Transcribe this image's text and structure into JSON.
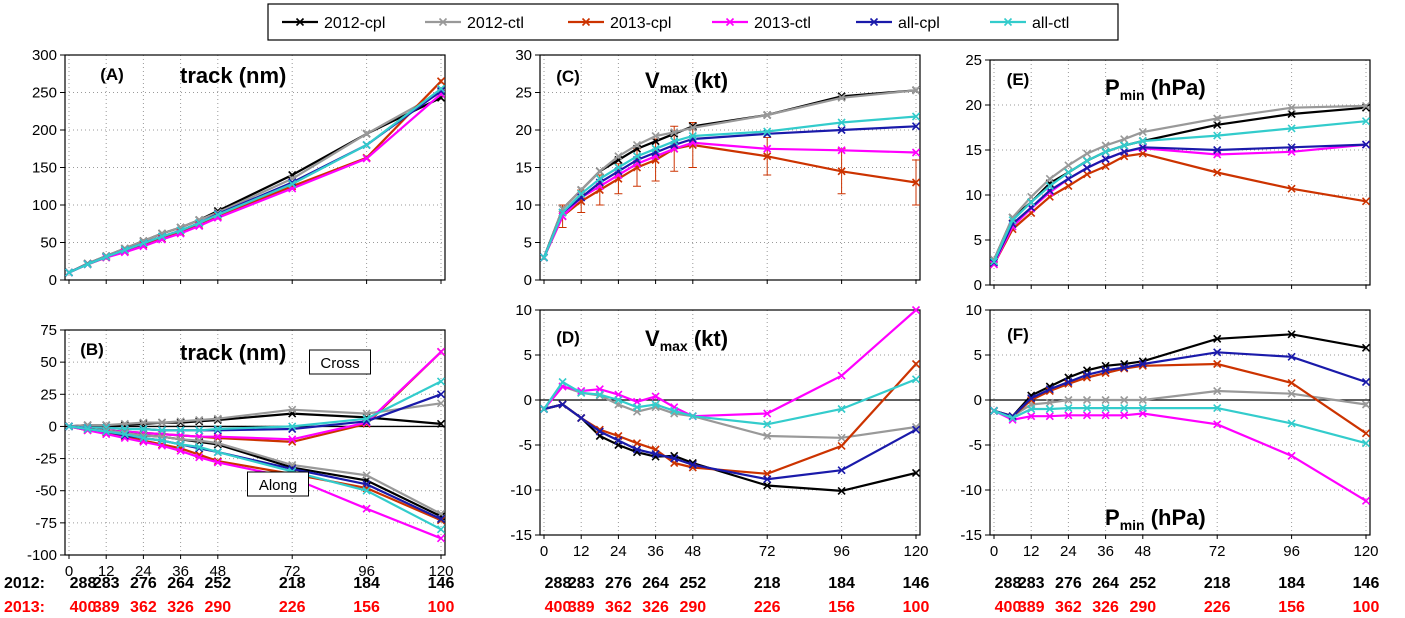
{
  "legend": [
    {
      "name": "2012-cpl",
      "color": "#000000"
    },
    {
      "name": "2012-ctl",
      "color": "#999999"
    },
    {
      "name": "2013-cpl",
      "color": "#cc3300"
    },
    {
      "name": "2013-ctl",
      "color": "#ff00ff"
    },
    {
      "name": "all-cpl",
      "color": "#1a1aaa"
    },
    {
      "name": "all-ctl",
      "color": "#33cccc"
    }
  ],
  "counts": {
    "label_2012": "2012:",
    "label_2013": "2013:",
    "color_2012": "#000000",
    "color_2013": "#ff0000",
    "hours": [
      0,
      12,
      24,
      36,
      48,
      72,
      96,
      120
    ],
    "values_2012": [
      "288",
      "283",
      "276",
      "264",
      "252",
      "218",
      "184",
      "146"
    ],
    "values_2013": [
      "400",
      "389",
      "362",
      "326",
      "290",
      "226",
      "156",
      "100"
    ]
  },
  "chart_data": [
    {
      "panel": "(A)",
      "type": "line",
      "title": "track (nm)",
      "x": [
        0,
        6,
        12,
        18,
        24,
        30,
        36,
        42,
        48,
        72,
        96,
        120
      ],
      "xticks": [
        0,
        12,
        24,
        36,
        48,
        72,
        96,
        120
      ],
      "ylim": [
        0,
        300
      ],
      "yticks": [
        0,
        50,
        100,
        150,
        200,
        250,
        300
      ],
      "grid": true,
      "series": [
        {
          "name": "2012-cpl",
          "values": [
            10,
            22,
            32,
            42,
            52,
            62,
            70,
            80,
            92,
            140,
            195,
            243
          ]
        },
        {
          "name": "2012-ctl",
          "values": [
            10,
            22,
            32,
            42,
            52,
            62,
            70,
            80,
            90,
            135,
            195,
            250
          ]
        },
        {
          "name": "2013-cpl",
          "values": [
            10,
            21,
            30,
            38,
            47,
            55,
            63,
            73,
            85,
            125,
            163,
            265
          ]
        },
        {
          "name": "2013-ctl",
          "values": [
            10,
            21,
            30,
            37,
            45,
            54,
            62,
            72,
            83,
            122,
            162,
            248
          ]
        },
        {
          "name": "all-cpl",
          "values": [
            10,
            21,
            31,
            40,
            49,
            58,
            66,
            76,
            88,
            130,
            180,
            252
          ]
        },
        {
          "name": "all-ctl",
          "values": [
            10,
            21,
            31,
            40,
            49,
            58,
            66,
            76,
            87,
            128,
            180,
            255
          ]
        }
      ]
    },
    {
      "panel": "(B)",
      "type": "line",
      "title": "track (nm)",
      "x": [
        0,
        6,
        12,
        18,
        24,
        30,
        36,
        42,
        48,
        72,
        96,
        120
      ],
      "xticks": [
        0,
        12,
        24,
        36,
        48,
        72,
        96,
        120
      ],
      "ylim": [
        -100,
        75
      ],
      "yticks": [
        -100,
        -75,
        -50,
        -25,
        0,
        25,
        50,
        75
      ],
      "grid": true,
      "zero_line": true,
      "annotations": [
        "Cross",
        "Along"
      ],
      "series": [
        {
          "name": "2012-cpl cross",
          "color_of": "2012-cpl",
          "values": [
            0,
            1,
            1,
            1,
            2,
            3,
            3,
            4,
            5,
            10,
            7,
            2
          ]
        },
        {
          "name": "2012-ctl cross",
          "color_of": "2012-ctl",
          "values": [
            0,
            1,
            1,
            2,
            3,
            3,
            4,
            5,
            6,
            13,
            10,
            18
          ]
        },
        {
          "name": "2013-cpl cross",
          "color_of": "2013-cpl",
          "values": [
            0,
            -1,
            -3,
            -4,
            -5,
            -6,
            -7,
            -8,
            -9,
            -12,
            2,
            58
          ]
        },
        {
          "name": "2013-ctl cross",
          "color_of": "2013-ctl",
          "values": [
            0,
            -1,
            -3,
            -4,
            -5,
            -6,
            -7,
            -8,
            -8,
            -10,
            3,
            58
          ]
        },
        {
          "name": "all-cpl cross",
          "color_of": "all-cpl",
          "values": [
            0,
            -1,
            -1,
            -2,
            -2,
            -3,
            -3,
            -3,
            -3,
            -2,
            4,
            25
          ]
        },
        {
          "name": "all-ctl cross",
          "color_of": "all-ctl",
          "values": [
            0,
            -1,
            -1,
            -2,
            -2,
            -3,
            -3,
            -3,
            -2,
            0,
            6,
            35
          ]
        },
        {
          "name": "2012-cpl along",
          "color_of": "2012-cpl",
          "values": [
            0,
            -2,
            -3,
            -5,
            -7,
            -8,
            -10,
            -12,
            -14,
            -32,
            -42,
            -70
          ]
        },
        {
          "name": "2012-ctl along",
          "color_of": "2012-ctl",
          "values": [
            0,
            -2,
            -3,
            -5,
            -7,
            -8,
            -10,
            -11,
            -13,
            -30,
            -38,
            -68
          ]
        },
        {
          "name": "2013-cpl along",
          "color_of": "2013-cpl",
          "values": [
            0,
            -3,
            -5,
            -8,
            -11,
            -14,
            -17,
            -22,
            -27,
            -37,
            -48,
            -73
          ]
        },
        {
          "name": "2013-ctl along",
          "color_of": "2013-ctl",
          "values": [
            0,
            -3,
            -6,
            -9,
            -12,
            -15,
            -19,
            -24,
            -28,
            -40,
            -64,
            -87
          ]
        },
        {
          "name": "all-cpl along",
          "color_of": "all-cpl",
          "values": [
            0,
            -2,
            -4,
            -7,
            -9,
            -11,
            -14,
            -17,
            -20,
            -33,
            -45,
            -72
          ]
        },
        {
          "name": "all-ctl along",
          "color_of": "all-ctl",
          "values": [
            0,
            -2,
            -4,
            -6,
            -9,
            -11,
            -14,
            -16,
            -20,
            -35,
            -50,
            -80
          ]
        }
      ]
    },
    {
      "panel": "(C)",
      "type": "line",
      "title": "V",
      "title_sub": "max",
      "title_tail": " (kt)",
      "x": [
        0,
        6,
        12,
        18,
        24,
        30,
        36,
        42,
        48,
        72,
        96,
        120
      ],
      "xticks": [
        0,
        12,
        24,
        36,
        48,
        72,
        96,
        120
      ],
      "ylim": [
        0,
        30
      ],
      "yticks": [
        0,
        5,
        10,
        15,
        20,
        25,
        30
      ],
      "grid": true,
      "error_bars": {
        "series": "2013-cpl",
        "half_width": [
          0,
          1.5,
          1.5,
          2,
          2,
          2.5,
          2.8,
          3,
          3,
          2.5,
          3,
          3
        ]
      },
      "series": [
        {
          "name": "2012-cpl",
          "values": [
            3,
            9.5,
            12,
            14.5,
            16,
            17.5,
            18.5,
            19.5,
            20.5,
            22,
            24.5,
            25.3
          ]
        },
        {
          "name": "2012-ctl",
          "values": [
            3,
            9.5,
            12,
            14.5,
            16.5,
            18,
            19.2,
            19.7,
            20.3,
            22,
            24.3,
            25.3
          ]
        },
        {
          "name": "2013-cpl",
          "values": [
            3,
            8.5,
            10.5,
            12,
            13.5,
            15,
            16,
            17.5,
            18,
            16.5,
            14.5,
            13
          ]
        },
        {
          "name": "2013-ctl",
          "values": [
            3,
            8.5,
            11,
            12.5,
            14,
            15.5,
            16.5,
            17.5,
            18.3,
            17.5,
            17.3,
            17
          ]
        },
        {
          "name": "all-cpl",
          "values": [
            3,
            9,
            11,
            13,
            14.5,
            16,
            17,
            18,
            18.8,
            19.5,
            20,
            20.5
          ]
        },
        {
          "name": "all-ctl",
          "values": [
            3,
            9,
            11.5,
            13.5,
            15,
            16.5,
            17.5,
            18.5,
            19.2,
            19.8,
            21,
            21.8
          ]
        }
      ]
    },
    {
      "panel": "(D)",
      "type": "line",
      "title": "V",
      "title_sub": "max",
      "title_tail": " (kt)",
      "x": [
        0,
        6,
        12,
        18,
        24,
        30,
        36,
        42,
        48,
        72,
        96,
        120
      ],
      "xticks": [
        0,
        12,
        24,
        36,
        48,
        72,
        96,
        120
      ],
      "ylim": [
        -15,
        10
      ],
      "yticks": [
        -15,
        -10,
        -5,
        0,
        5,
        10
      ],
      "grid": true,
      "zero_line": true,
      "series": [
        {
          "name": "2012-cpl",
          "values": [
            -1,
            -0.5,
            -2,
            -4,
            -5,
            -5.8,
            -6.3,
            -6.2,
            -7,
            -9.5,
            -10.1,
            -8.1
          ]
        },
        {
          "name": "2012-ctl",
          "values": [
            -1,
            1.5,
            0.8,
            0.5,
            -0.5,
            -1.3,
            -0.8,
            -1.5,
            -1.8,
            -4,
            -4.2,
            -3
          ]
        },
        {
          "name": "2013-cpl",
          "values": [
            -1,
            -0.5,
            -2,
            -3.3,
            -4,
            -4.8,
            -5.5,
            -7,
            -7.5,
            -8.2,
            -5.1,
            4
          ]
        },
        {
          "name": "2013-ctl",
          "values": [
            -1,
            1.5,
            1,
            1.2,
            0.6,
            -0.2,
            0.4,
            -0.8,
            -1.8,
            -1.5,
            2.7,
            10
          ]
        },
        {
          "name": "all-cpl",
          "values": [
            -1,
            -0.5,
            -2,
            -3.5,
            -4.5,
            -5.5,
            -6,
            -6.5,
            -7.2,
            -8.8,
            -7.8,
            -3.3
          ]
        },
        {
          "name": "all-ctl",
          "values": [
            -1,
            2,
            0.8,
            0.6,
            0,
            -0.8,
            -0.5,
            -1.2,
            -1.8,
            -2.7,
            -1,
            2.3
          ]
        }
      ]
    },
    {
      "panel": "(E)",
      "type": "line",
      "title": "P",
      "title_sub": "min",
      "title_tail": " (hPa)",
      "x": [
        0,
        6,
        12,
        18,
        24,
        30,
        36,
        42,
        48,
        72,
        96,
        120
      ],
      "xticks": [
        0,
        12,
        24,
        36,
        48,
        72,
        96,
        120
      ],
      "ylim": [
        0,
        25
      ],
      "yticks": [
        0,
        5,
        10,
        15,
        20,
        25
      ],
      "grid": true,
      "series": [
        {
          "name": "2012-cpl",
          "values": [
            2.8,
            7.5,
            9.2,
            11.3,
            12.5,
            13.8,
            14.8,
            15.5,
            16,
            17.8,
            19,
            19.7
          ]
        },
        {
          "name": "2012-ctl",
          "values": [
            2.8,
            7.5,
            9.8,
            11.8,
            13.3,
            14.6,
            15.5,
            16.2,
            17,
            18.5,
            19.7,
            19.9
          ]
        },
        {
          "name": "2013-cpl",
          "values": [
            2.3,
            6.2,
            8,
            9.8,
            11,
            12.3,
            13.2,
            14.3,
            14.6,
            12.5,
            10.7,
            9.3
          ]
        },
        {
          "name": "2013-ctl",
          "values": [
            2.3,
            6.5,
            8.5,
            10.3,
            11.8,
            13,
            14,
            14.8,
            15.2,
            14.5,
            14.8,
            15.6
          ]
        },
        {
          "name": "all-cpl",
          "values": [
            2.5,
            6.8,
            8.6,
            10.5,
            11.8,
            13,
            14,
            14.8,
            15.3,
            15,
            15.3,
            15.6
          ]
        },
        {
          "name": "all-ctl",
          "values": [
            2.6,
            7.2,
            9.2,
            11,
            12.5,
            13.8,
            14.8,
            15.5,
            16,
            16.6,
            17.4,
            18.2
          ]
        }
      ]
    },
    {
      "panel": "(F)",
      "type": "line",
      "title": "P",
      "title_sub": "min",
      "title_tail": " (hPa)",
      "x": [
        0,
        6,
        12,
        18,
        24,
        30,
        36,
        42,
        48,
        72,
        96,
        120
      ],
      "xticks": [
        0,
        12,
        24,
        36,
        48,
        72,
        96,
        120
      ],
      "ylim": [
        -15,
        10
      ],
      "yticks": [
        -15,
        -10,
        -5,
        0,
        5,
        10
      ],
      "grid": true,
      "zero_line": true,
      "series": [
        {
          "name": "2012-cpl",
          "values": [
            -1.2,
            -1.8,
            0.5,
            1.5,
            2.5,
            3.3,
            3.8,
            4,
            4.3,
            6.8,
            7.3,
            5.8
          ]
        },
        {
          "name": "2012-ctl",
          "values": [
            -1.2,
            -1.8,
            -0.5,
            -0.3,
            0,
            0,
            0,
            0,
            0,
            1,
            0.7,
            -0.5
          ]
        },
        {
          "name": "2013-cpl",
          "values": [
            -1.2,
            -1.8,
            0,
            1,
            1.8,
            2.5,
            3,
            3.5,
            3.8,
            4,
            1.9,
            -3.7
          ]
        },
        {
          "name": "2013-ctl",
          "values": [
            -1.2,
            -2.2,
            -1.8,
            -1.8,
            -1.7,
            -1.7,
            -1.7,
            -1.7,
            -1.5,
            -2.7,
            -6.2,
            -11.2
          ]
        },
        {
          "name": "all-cpl",
          "values": [
            -1.2,
            -1.8,
            0.2,
            1.2,
            2,
            2.8,
            3.3,
            3.6,
            4,
            5.3,
            4.8,
            2
          ]
        },
        {
          "name": "all-ctl",
          "values": [
            -1.2,
            -2,
            -1,
            -1,
            -0.9,
            -0.9,
            -0.9,
            -0.9,
            -0.9,
            -0.9,
            -2.6,
            -4.8
          ]
        }
      ]
    }
  ]
}
